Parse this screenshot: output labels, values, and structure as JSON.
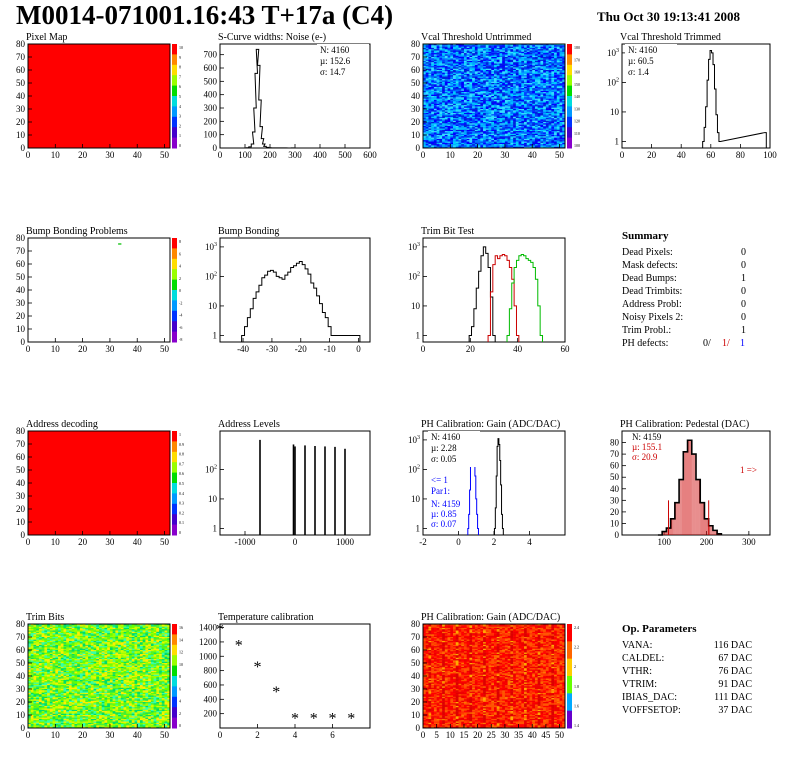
{
  "page_title": "M0014-071001.16:43 T+17a (C4)",
  "timestamp": "Thu Oct 30 19:13:41 2008",
  "colors": {
    "red_map": "#ff0000",
    "blue_hist": "#0000ff",
    "red_hist": "#cc0000",
    "green_hist": "#00bb00"
  },
  "chart_data": [
    {
      "id": "pixel-map",
      "type": "heatmap",
      "title": "Pixel Map",
      "xlim": [
        0,
        52
      ],
      "ylim": [
        0,
        80
      ],
      "xticks": [
        0,
        10,
        20,
        30,
        40,
        50
      ],
      "yticks": [
        0,
        10,
        20,
        30,
        40,
        50,
        60,
        70,
        80
      ],
      "fill": "uniform-red",
      "palette_labels": [
        "10",
        "9",
        "8",
        "7",
        "6",
        "5",
        "4",
        "3",
        "2",
        "1",
        "0"
      ]
    },
    {
      "id": "scurve-noise",
      "type": "line",
      "title": "S-Curve widths: Noise (e-)",
      "xlim": [
        0,
        600
      ],
      "ylim": [
        0,
        780
      ],
      "xticks": [
        0,
        100,
        200,
        300,
        400,
        500,
        600
      ],
      "yticks": [
        0,
        100,
        200,
        300,
        400,
        500,
        600,
        700
      ],
      "stats": {
        "N": "4160",
        "mu": "152.6",
        "sigma": "14.7"
      },
      "x": [
        100,
        110,
        120,
        130,
        135,
        140,
        145,
        150,
        155,
        160,
        165,
        170,
        175,
        180,
        190,
        200,
        210,
        230,
        260,
        280,
        290,
        300
      ],
      "values": [
        0,
        2,
        8,
        30,
        120,
        300,
        560,
        740,
        620,
        360,
        160,
        70,
        30,
        12,
        5,
        2,
        1,
        1,
        1,
        0,
        1,
        0
      ]
    },
    {
      "id": "vcal-untrimmed",
      "type": "heatmap",
      "title": "Vcal Threshold Untrimmed",
      "xlim": [
        0,
        52
      ],
      "ylim": [
        0,
        80
      ],
      "xticks": [
        0,
        10,
        20,
        30,
        40,
        50
      ],
      "yticks": [
        0,
        10,
        20,
        30,
        40,
        50,
        60,
        70,
        80
      ],
      "fill": "noise-blue",
      "palette_labels": [
        "180",
        "170",
        "160",
        "150",
        "140",
        "130",
        "120",
        "110",
        "100"
      ]
    },
    {
      "id": "vcal-trimmed",
      "type": "line",
      "log_y": true,
      "title": "Vcal Threshold Trimmed",
      "xlim": [
        0,
        100
      ],
      "ylim": [
        0.6,
        2000
      ],
      "xticks": [
        0,
        20,
        40,
        60,
        80,
        100
      ],
      "yticks": [
        1,
        10,
        100,
        1000
      ],
      "stats": {
        "N": "4160",
        "mu": "60.5",
        "sigma": "1.4"
      },
      "x": [
        55,
        56,
        57,
        58,
        59,
        60,
        61,
        62,
        63,
        64,
        65,
        66,
        97,
        98
      ],
      "values": [
        1,
        3,
        15,
        120,
        600,
        1200,
        1000,
        400,
        60,
        8,
        2,
        1,
        2,
        0
      ]
    },
    {
      "id": "bump-bonding-problems",
      "type": "heatmap",
      "title": "Bump Bonding Problems",
      "xlim": [
        0,
        52
      ],
      "ylim": [
        0,
        80
      ],
      "xticks": [
        0,
        10,
        20,
        30,
        40,
        50
      ],
      "yticks": [
        0,
        10,
        20,
        30,
        40,
        50,
        60,
        70,
        80
      ],
      "fill": "white-single-pixel",
      "palette_labels": [
        "8",
        "6",
        "4",
        "2",
        "0",
        "-2",
        "-4",
        "-6",
        "-8"
      ]
    },
    {
      "id": "bump-bonding",
      "type": "line",
      "log_y": true,
      "title": "Bump Bonding",
      "xlim": [
        -48,
        4
      ],
      "ylim": [
        0.6,
        2000
      ],
      "xticks": [
        -40,
        -30,
        -20,
        -10,
        0
      ],
      "yticks": [
        1,
        10,
        100,
        1000
      ],
      "x": [
        -40,
        -39,
        -38,
        -37,
        -36,
        -35,
        -34,
        -33,
        -32,
        -31,
        -30,
        -29,
        -28,
        -27,
        -26,
        -25,
        -24,
        -23,
        -22,
        -21,
        -20,
        -19,
        -18,
        -17,
        -16,
        -15,
        -14,
        -13,
        -12,
        -11,
        -10,
        -9,
        -8,
        -7,
        -6,
        -1,
        0
      ],
      "values": [
        1,
        2,
        4,
        8,
        18,
        30,
        50,
        90,
        110,
        150,
        160,
        140,
        100,
        90,
        80,
        110,
        140,
        200,
        230,
        280,
        320,
        250,
        180,
        120,
        60,
        40,
        22,
        12,
        6,
        4,
        2,
        1,
        1,
        1,
        1,
        1,
        1
      ]
    },
    {
      "id": "trim-bit-test",
      "type": "line",
      "log_y": true,
      "title": "Trim Bit Test",
      "xlim": [
        0,
        60
      ],
      "ylim": [
        0.6,
        2000
      ],
      "xticks": [
        0,
        20,
        40,
        60
      ],
      "yticks": [
        1,
        10,
        100,
        1000
      ],
      "series": [
        {
          "color": "#000000",
          "x": [
            20,
            21,
            22,
            23,
            24,
            25,
            26,
            27,
            28,
            29,
            30
          ],
          "values": [
            1,
            2,
            8,
            40,
            150,
            500,
            1000,
            600,
            200,
            20,
            1
          ]
        },
        {
          "color": "#cc0000",
          "x": [
            28,
            29,
            30,
            31,
            32,
            33,
            34,
            35,
            36,
            37,
            38,
            39,
            40
          ],
          "values": [
            1,
            30,
            250,
            500,
            400,
            500,
            550,
            500,
            350,
            200,
            80,
            10,
            1
          ]
        },
        {
          "color": "#00bb00",
          "x": [
            36,
            37,
            38,
            39,
            40,
            41,
            42,
            43,
            44,
            45,
            46,
            47,
            48,
            49,
            50
          ],
          "values": [
            1,
            8,
            60,
            200,
            350,
            500,
            550,
            500,
            400,
            350,
            300,
            200,
            80,
            10,
            1
          ]
        }
      ]
    },
    {
      "id": "address-decoding",
      "type": "heatmap",
      "title": "Address decoding",
      "xlim": [
        0,
        52
      ],
      "ylim": [
        0,
        80
      ],
      "xticks": [
        0,
        10,
        20,
        30,
        40,
        50
      ],
      "yticks": [
        0,
        10,
        20,
        30,
        40,
        50,
        60,
        70,
        80
      ],
      "fill": "uniform-red",
      "palette_labels": [
        "1",
        "0.9",
        "0.8",
        "0.7",
        "0.6",
        "0.5",
        "0.4",
        "0.3",
        "0.2",
        "0.1",
        "0"
      ]
    },
    {
      "id": "address-levels",
      "type": "bar",
      "log_y": true,
      "title": "Address Levels",
      "xlim": [
        -1500,
        1500
      ],
      "ylim": [
        0.6,
        2000
      ],
      "xticks": [
        -1000,
        0,
        1000
      ],
      "yticks": [
        1,
        10,
        100
      ],
      "x": [
        -700,
        -30,
        0,
        200,
        400,
        600,
        800,
        1000
      ],
      "values": [
        1000,
        700,
        600,
        650,
        620,
        600,
        580,
        500
      ]
    },
    {
      "id": "ph-gain-hist",
      "type": "line",
      "log_y": true,
      "title": "PH Calibration: Gain (ADC/DAC)",
      "xlim": [
        -2,
        6
      ],
      "ylim": [
        0.6,
        2000
      ],
      "xticks": [
        -2,
        0,
        2,
        4
      ],
      "yticks": [
        1,
        10,
        100,
        1000
      ],
      "stats": {
        "N": "4160",
        "mu": "2.28",
        "sigma": "0.05"
      },
      "annotation": "<= 1",
      "annotation2": "Par1:",
      "stats2": {
        "N": "4159",
        "mu": "0.85",
        "sigma": "0.07"
      },
      "series": [
        {
          "color": "#000000",
          "x": [
            2.05,
            2.1,
            2.15,
            2.2,
            2.25,
            2.3,
            2.35,
            2.4,
            2.45,
            2.5
          ],
          "values": [
            1,
            5,
            60,
            600,
            1100,
            700,
            200,
            30,
            3,
            1
          ]
        },
        {
          "color": "#0000ff",
          "x": [
            0.55,
            0.6,
            0.65,
            0.7,
            0.75,
            0.8,
            0.85,
            0.9,
            0.95,
            1.0,
            1.05,
            1.1
          ],
          "values": [
            1,
            3,
            20,
            150,
            500,
            400,
            300,
            200,
            60,
            10,
            3,
            1
          ]
        }
      ]
    },
    {
      "id": "ph-pedestal",
      "type": "line",
      "title": "PH Calibration: Pedestal (DAC)",
      "xlim": [
        0,
        350
      ],
      "ylim": [
        0,
        90
      ],
      "xticks": [
        100,
        200,
        300
      ],
      "yticks": [
        0,
        10,
        20,
        30,
        40,
        50,
        60,
        70,
        80
      ],
      "stats": {
        "N": "4159",
        "mu": "155.1",
        "sigma": "20.9"
      },
      "annotation": "1 =>",
      "x": [
        90,
        100,
        110,
        120,
        130,
        140,
        150,
        160,
        170,
        180,
        190,
        200,
        210,
        220,
        230
      ],
      "values": [
        0,
        3,
        6,
        14,
        28,
        48,
        72,
        82,
        70,
        48,
        28,
        14,
        8,
        4,
        1
      ]
    },
    {
      "id": "trim-bits",
      "type": "heatmap",
      "title": "Trim Bits",
      "xlim": [
        0,
        52
      ],
      "ylim": [
        0,
        80
      ],
      "xticks": [
        0,
        10,
        20,
        30,
        40,
        50
      ],
      "yticks": [
        0,
        10,
        20,
        30,
        40,
        50,
        60,
        70,
        80
      ],
      "fill": "noise-green",
      "palette_labels": [
        "16",
        "14",
        "12",
        "10",
        "8",
        "6",
        "4",
        "2",
        "0"
      ]
    },
    {
      "id": "temperature-calibration",
      "type": "scatter",
      "title": "Temperature calibration",
      "xlim": [
        0,
        8
      ],
      "ylim": [
        0,
        1450
      ],
      "xticks": [
        0,
        2,
        4,
        6
      ],
      "yticks": [
        200,
        400,
        600,
        800,
        1000,
        1200,
        1400
      ],
      "x": [
        0,
        1,
        2,
        3,
        4,
        5,
        6,
        7
      ],
      "values": [
        1370,
        1150,
        850,
        500,
        130,
        130,
        130,
        130
      ]
    },
    {
      "id": "ph-gain-map",
      "type": "heatmap",
      "title": "PH Calibration: Gain (ADC/DAC)",
      "xlim": [
        0,
        52
      ],
      "ylim": [
        0,
        80
      ],
      "xticks": [
        0,
        5,
        10,
        15,
        20,
        25,
        30,
        35,
        40,
        45,
        50
      ],
      "yticks": [
        0,
        10,
        20,
        30,
        40,
        50,
        60,
        70,
        80
      ],
      "fill": "noise-red",
      "palette_labels": [
        "2.4",
        "2.2",
        "2",
        "1.8",
        "1.6",
        "1.4"
      ]
    }
  ],
  "summary": {
    "title": "Summary",
    "rows": [
      {
        "label": "Dead Pixels:",
        "value": "0"
      },
      {
        "label": "Mask defects:",
        "value": "0"
      },
      {
        "label": "Dead Bumps:",
        "value": "1"
      },
      {
        "label": "Dead Trimbits:",
        "value": "0"
      },
      {
        "label": "Address Probl:",
        "value": "0"
      },
      {
        "label": "Noisy Pixels 2:",
        "value": "0"
      },
      {
        "label": "Trim Probl.:",
        "value": "1"
      }
    ],
    "ph_label": "PH defects:",
    "ph_values": [
      "0/",
      "1/",
      "1"
    ]
  },
  "op_params": {
    "title": "Op. Parameters",
    "rows": [
      {
        "label": "VANA:",
        "value": "116 DAC"
      },
      {
        "label": "CALDEL:",
        "value": "67 DAC"
      },
      {
        "label": "VTHR:",
        "value": "76 DAC"
      },
      {
        "label": "VTRIM:",
        "value": "91 DAC"
      },
      {
        "label": "IBIAS_DAC:",
        "value": "111 DAC"
      },
      {
        "label": "VOFFSETOP:",
        "value": "37 DAC"
      }
    ]
  }
}
